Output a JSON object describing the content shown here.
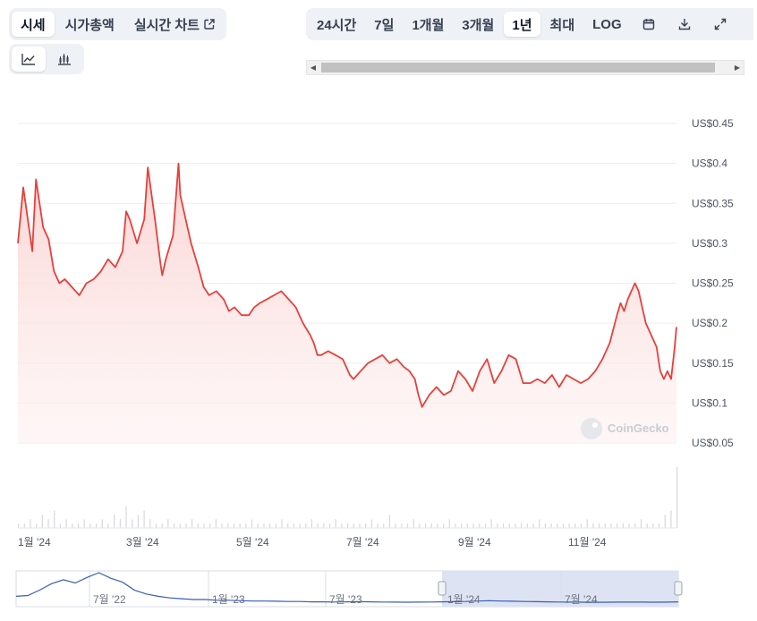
{
  "view_tabs": [
    {
      "label": "시세",
      "active": true
    },
    {
      "label": "시가총액",
      "active": false
    },
    {
      "label": "실시간 차트",
      "active": false,
      "external": true
    }
  ],
  "chart_type_buttons": [
    "line-chart-icon",
    "candlestick-chart-icon"
  ],
  "range_tabs": [
    {
      "label": "24시간",
      "active": false
    },
    {
      "label": "7일",
      "active": false
    },
    {
      "label": "1개월",
      "active": false
    },
    {
      "label": "3개월",
      "active": false
    },
    {
      "label": "1년",
      "active": true
    },
    {
      "label": "최대",
      "active": false
    },
    {
      "label": "LOG",
      "active": false
    }
  ],
  "toolbar_icons": [
    "calendar-icon",
    "download-icon",
    "expand-icon"
  ],
  "watermark": "CoinGecko",
  "colors": {
    "line": "#e5413b",
    "fill_top": "#fbd3d2",
    "nav_line": "#3b5cb8",
    "nav_selection": "#dde3f2"
  },
  "chart_data": {
    "type": "area",
    "ylim": [
      0.05,
      0.45
    ],
    "y_ticks": [
      0.05,
      0.1,
      0.15,
      0.2,
      0.25,
      0.3,
      0.35,
      0.4,
      0.45
    ],
    "y_tick_labels": [
      "US$0.05",
      "US$0.1",
      "US$0.15",
      "US$0.2",
      "US$0.25",
      "US$0.3",
      "US$0.35",
      "US$0.4",
      "US$0.45"
    ],
    "x_tick_labels": [
      "1월 '24",
      "3월 '24",
      "5월 '24",
      "7월 '24",
      "9월 '24",
      "11월 '24"
    ],
    "x_tick_day": [
      0,
      60,
      121,
      182,
      244,
      305
    ],
    "series": [
      {
        "x_day": [
          0,
          3,
          8,
          10,
          14,
          17,
          20,
          23,
          26,
          30,
          34,
          38,
          42,
          46,
          50,
          54,
          58,
          60,
          62,
          66,
          70,
          72,
          76,
          79,
          80,
          82,
          86,
          89,
          90,
          93,
          96,
          100,
          103,
          106,
          110,
          114,
          117,
          120,
          124,
          128,
          131,
          134,
          138,
          142,
          146,
          150,
          154,
          158,
          162,
          164,
          166,
          168,
          172,
          176,
          180,
          184,
          186,
          190,
          194,
          198,
          202,
          206,
          210,
          214,
          217,
          220,
          222,
          224,
          228,
          232,
          236,
          240,
          244,
          248,
          252,
          256,
          260,
          264,
          268,
          272,
          276,
          280,
          284,
          288,
          292,
          296,
          300,
          304,
          308,
          312,
          316,
          320,
          324,
          328,
          332,
          334,
          336,
          338,
          340,
          342,
          344,
          346,
          348,
          350,
          354,
          356,
          358,
          360,
          362,
          364,
          365
        ],
        "values": [
          0.3,
          0.37,
          0.29,
          0.38,
          0.32,
          0.305,
          0.265,
          0.25,
          0.255,
          0.245,
          0.235,
          0.25,
          0.255,
          0.265,
          0.28,
          0.27,
          0.29,
          0.34,
          0.33,
          0.3,
          0.33,
          0.395,
          0.33,
          0.275,
          0.26,
          0.28,
          0.31,
          0.4,
          0.36,
          0.33,
          0.3,
          0.27,
          0.245,
          0.235,
          0.24,
          0.23,
          0.215,
          0.22,
          0.21,
          0.21,
          0.22,
          0.225,
          0.23,
          0.235,
          0.24,
          0.23,
          0.22,
          0.2,
          0.185,
          0.175,
          0.16,
          0.16,
          0.165,
          0.16,
          0.155,
          0.135,
          0.13,
          0.14,
          0.15,
          0.155,
          0.16,
          0.15,
          0.155,
          0.145,
          0.14,
          0.13,
          0.11,
          0.095,
          0.11,
          0.12,
          0.11,
          0.115,
          0.14,
          0.13,
          0.115,
          0.14,
          0.155,
          0.125,
          0.14,
          0.16,
          0.155,
          0.125,
          0.125,
          0.13,
          0.125,
          0.135,
          0.12,
          0.135,
          0.13,
          0.125,
          0.13,
          0.14,
          0.155,
          0.175,
          0.21,
          0.225,
          0.215,
          0.23,
          0.24,
          0.25,
          0.24,
          0.22,
          0.2,
          0.19,
          0.17,
          0.14,
          0.13,
          0.14,
          0.13,
          0.17,
          0.195
        ]
      }
    ],
    "volume": [
      1,
      1,
      2,
      1,
      3,
      2,
      4,
      1,
      2,
      1,
      1,
      2,
      1,
      1,
      2,
      1,
      3,
      2,
      5,
      2,
      3,
      4,
      2,
      1,
      1,
      2,
      1,
      1,
      1,
      2,
      1,
      1,
      1,
      2,
      1,
      1,
      1,
      1,
      1,
      2,
      1,
      1,
      1,
      1,
      2,
      1,
      1,
      1,
      1,
      2,
      1,
      1,
      1,
      2,
      1,
      1,
      1,
      1,
      1,
      2,
      1,
      1,
      3,
      1,
      1,
      1,
      2,
      1,
      1,
      1,
      1,
      1,
      2,
      1,
      1,
      1,
      1,
      1,
      1,
      2,
      1,
      1,
      1,
      1,
      1,
      1,
      1,
      2,
      1,
      1,
      1,
      1,
      1,
      1,
      1,
      2,
      1,
      1,
      1,
      1,
      1,
      1,
      1,
      1,
      2,
      1,
      1,
      1,
      3,
      4,
      14
    ]
  },
  "navigator": {
    "labels": [
      "7월 '22",
      "1월 '23",
      "7월 '23",
      "1월 '24",
      "7월 '24"
    ],
    "series_values": [
      0.12,
      0.13,
      0.2,
      0.28,
      0.33,
      0.29,
      0.36,
      0.42,
      0.35,
      0.3,
      0.2,
      0.15,
      0.12,
      0.1,
      0.09,
      0.08,
      0.08,
      0.07,
      0.07,
      0.065,
      0.06,
      0.06,
      0.058,
      0.055,
      0.055,
      0.05,
      0.05,
      0.048,
      0.05,
      0.052,
      0.05,
      0.048,
      0.046,
      0.045,
      0.046,
      0.048,
      0.05,
      0.052,
      0.055,
      0.06,
      0.065,
      0.06,
      0.058,
      0.055,
      0.052,
      0.05,
      0.048,
      0.046,
      0.045,
      0.044,
      0.045,
      0.046,
      0.047,
      0.046,
      0.045,
      0.046,
      0.05
    ]
  }
}
